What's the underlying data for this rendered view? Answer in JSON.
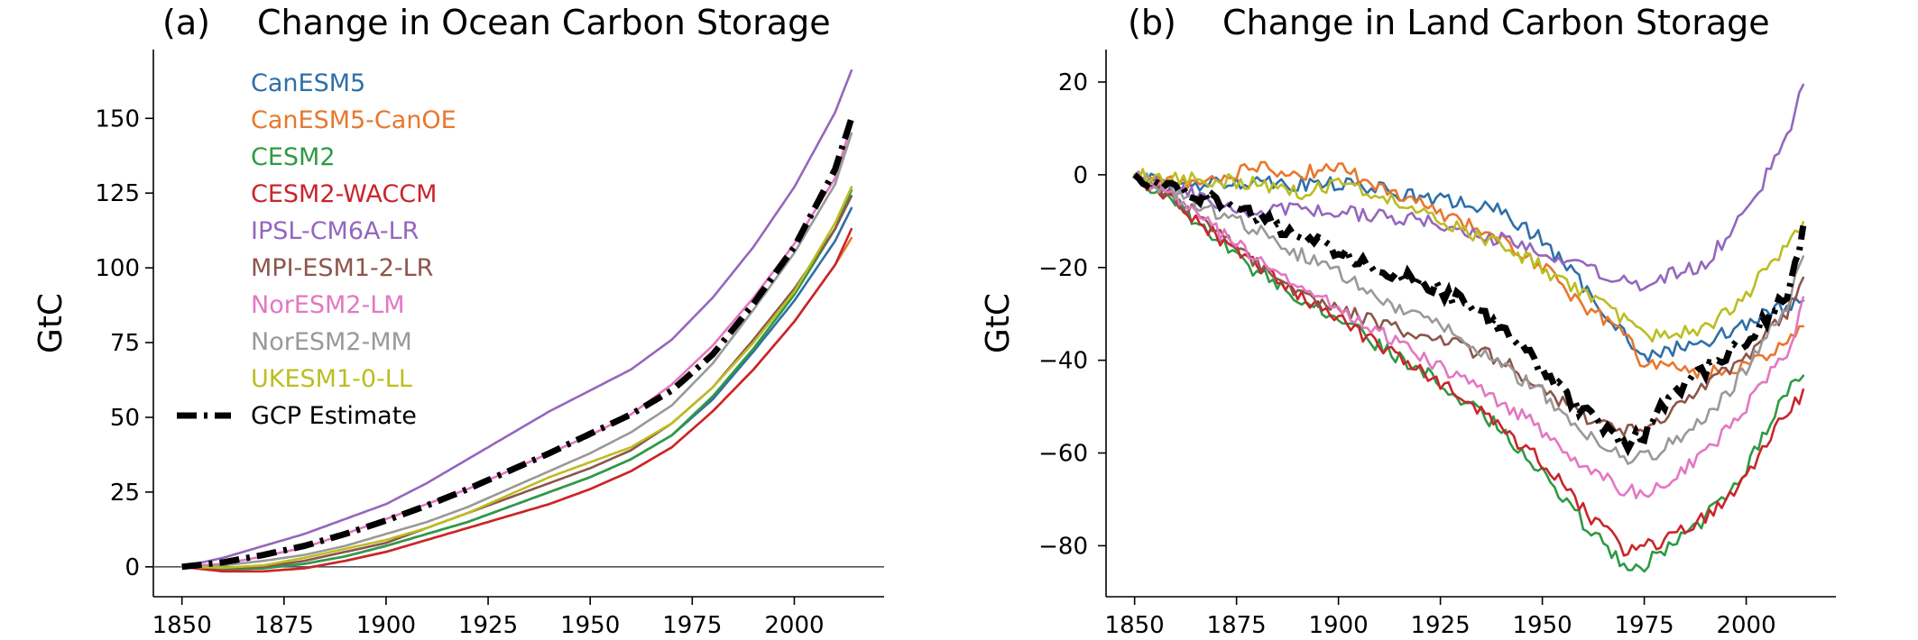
{
  "colors": {
    "CanESM5": "#2f6fa7",
    "CanESM5-CanOE": "#e8772e",
    "CESM2": "#2e9a44",
    "CESM2-WACCM": "#c9252c",
    "IPSL-CM6A-LR": "#9467bd",
    "MPI-ESM1-2-LR": "#8c564b",
    "NorESM2-LM": "#e377c2",
    "NorESM2-MM": "#999999",
    "UKESM1-0-LL": "#bcbd22",
    "GCP Estimate": "#000000"
  },
  "chart_data": [
    {
      "type": "line",
      "panel_label": "(a)",
      "title": "Change in Ocean Carbon Storage",
      "xlabel": "",
      "ylabel": "GtC",
      "xlim": [
        1843,
        2022
      ],
      "ylim": [
        -10,
        173
      ],
      "xticks": [
        1850,
        1875,
        1900,
        1925,
        1950,
        1975,
        2000
      ],
      "yticks": [
        0,
        25,
        50,
        75,
        100,
        125,
        150
      ],
      "grid": false,
      "zero_line": true,
      "legend": {
        "placement": "top-left",
        "entries": [
          "CanESM5",
          "CanESM5-CanOE",
          "CESM2",
          "CESM2-WACCM",
          "IPSL-CM6A-LR",
          "MPI-ESM1-2-LR",
          "NorESM2-LM",
          "NorESM2-MM",
          "UKESM1-0-LL",
          "GCP Estimate"
        ]
      },
      "x": [
        1850,
        1860,
        1870,
        1880,
        1890,
        1900,
        1910,
        1920,
        1930,
        1940,
        1950,
        1960,
        1970,
        1980,
        1990,
        2000,
        2010,
        2014
      ],
      "series": [
        {
          "name": "CanESM5",
          "values": [
            0,
            -0.8,
            -0.5,
            1,
            3.5,
            7,
            11,
            15,
            20,
            25,
            30,
            36,
            44,
            56,
            72,
            89,
            109,
            120
          ]
        },
        {
          "name": "CanESM5-CanOE",
          "values": [
            0,
            -1.5,
            -1.5,
            -0.5,
            2,
            5,
            9,
            13,
            17,
            21,
            26,
            32,
            40,
            52,
            66,
            82,
            101,
            110
          ]
        },
        {
          "name": "CESM2",
          "values": [
            0,
            -0.8,
            -0.5,
            1,
            3.5,
            7,
            11,
            15,
            20,
            25,
            30,
            36,
            44,
            57,
            73,
            91,
            113,
            126
          ]
        },
        {
          "name": "CESM2-WACCM",
          "values": [
            0,
            -1.5,
            -1.5,
            -0.5,
            2,
            5,
            9,
            13,
            17,
            21,
            26,
            32,
            40,
            52,
            66,
            82,
            101,
            113
          ]
        },
        {
          "name": "IPSL-CM6A-LR",
          "values": [
            0,
            3,
            7,
            11,
            16,
            21,
            28,
            36,
            44,
            52,
            59,
            66,
            76,
            90,
            107,
            127,
            152,
            166
          ]
        },
        {
          "name": "MPI-ESM1-2-LR",
          "values": [
            0,
            -0.5,
            0,
            2,
            5,
            8,
            13,
            18,
            23,
            28,
            33,
            39,
            48,
            60,
            76,
            93,
            113,
            124
          ]
        },
        {
          "name": "NorESM2-LM",
          "values": [
            0,
            1,
            3.5,
            6.5,
            11,
            16,
            21,
            26,
            32,
            38,
            44,
            51,
            61,
            74,
            90,
            108,
            130,
            148
          ]
        },
        {
          "name": "NorESM2-MM",
          "values": [
            0,
            0.5,
            2,
            4,
            7,
            11,
            15,
            20,
            26,
            32,
            38,
            45,
            54,
            68,
            86,
            105,
            128,
            145
          ]
        },
        {
          "name": "UKESM1-0-LL",
          "values": [
            0,
            -0.3,
            0.5,
            3,
            6,
            9,
            13,
            18,
            24,
            30,
            35,
            40,
            48,
            60,
            75,
            92,
            115,
            127
          ]
        },
        {
          "name": "GCP Estimate",
          "values": [
            0,
            1.5,
            4,
            7,
            11,
            15.5,
            20.5,
            26,
            32,
            38,
            44.5,
            51,
            59,
            71,
            88,
            107,
            133,
            150
          ]
        }
      ]
    },
    {
      "type": "line",
      "panel_label": "(b)",
      "title": "Change in Land Carbon Storage",
      "xlabel": "",
      "ylabel": "GtC",
      "xlim": [
        1843,
        2022
      ],
      "ylim": [
        -91,
        27
      ],
      "xticks": [
        1850,
        1875,
        1900,
        1925,
        1950,
        1975,
        2000
      ],
      "yticks": [
        -80,
        -60,
        -40,
        -20,
        0,
        20
      ],
      "grid": false,
      "zero_line": false,
      "x": [
        1850,
        1860,
        1870,
        1880,
        1890,
        1900,
        1910,
        1920,
        1930,
        1940,
        1950,
        1960,
        1970,
        1975,
        1980,
        1990,
        2000,
        2010,
        2014
      ],
      "series": [
        {
          "name": "CanESM5",
          "values": [
            0,
            -3,
            -2,
            -1,
            -2,
            -2,
            -3,
            -5,
            -6,
            -8,
            -14,
            -24,
            -34,
            -40,
            -38,
            -36,
            -32,
            -28,
            -27
          ]
        },
        {
          "name": "CanESM5-CanOE",
          "values": [
            0,
            -2,
            -1,
            2,
            0,
            2,
            -3,
            -6,
            -10,
            -14,
            -20,
            -28,
            -34,
            -41,
            -41,
            -43,
            -41,
            -36,
            -33
          ]
        },
        {
          "name": "CESM2",
          "values": [
            0,
            -6,
            -14,
            -21,
            -26,
            -31,
            -37,
            -42,
            -48,
            -55,
            -64,
            -75,
            -84,
            -84,
            -81,
            -74,
            -63,
            -47,
            -42
          ]
        },
        {
          "name": "CESM2-WACCM",
          "values": [
            0,
            -6,
            -13,
            -20,
            -26,
            -31,
            -37,
            -42,
            -48,
            -55,
            -62,
            -72,
            -81,
            -80,
            -79,
            -74,
            -65,
            -51,
            -47
          ]
        },
        {
          "name": "IPSL-CM6A-LR",
          "values": [
            0,
            -3,
            -6,
            -8,
            -7,
            -8,
            -9,
            -10,
            -12,
            -14,
            -16,
            -20,
            -23,
            -24,
            -22,
            -19,
            -8,
            8,
            21
          ]
        },
        {
          "name": "MPI-ESM1-2-LR",
          "values": [
            0,
            -5,
            -12,
            -19,
            -25,
            -29,
            -32,
            -35,
            -37,
            -40,
            -46,
            -52,
            -55,
            -54,
            -52,
            -46,
            -39,
            -30,
            -22
          ]
        },
        {
          "name": "NorESM2-LM",
          "values": [
            0,
            -5,
            -12,
            -18,
            -24,
            -29,
            -34,
            -39,
            -44,
            -49,
            -55,
            -63,
            -68,
            -69,
            -67,
            -60,
            -50,
            -38,
            -28
          ]
        },
        {
          "name": "NorESM2-MM",
          "values": [
            0,
            -4,
            -8,
            -12,
            -17,
            -21,
            -27,
            -30,
            -35,
            -41,
            -47,
            -56,
            -61,
            -61,
            -59,
            -53,
            -42,
            -28,
            -17
          ]
        },
        {
          "name": "UKESM1-0-LL",
          "values": [
            0,
            -1,
            -1,
            -2,
            -4,
            -2,
            -4,
            -8,
            -12,
            -15,
            -20,
            -26,
            -31,
            -34,
            -35,
            -33,
            -26,
            -15,
            -11
          ]
        },
        {
          "name": "GCP Estimate",
          "values": [
            0,
            -3,
            -6,
            -9,
            -13,
            -17,
            -20,
            -23,
            -27,
            -33,
            -42,
            -51,
            -58,
            -56,
            -49,
            -42,
            -36,
            -26,
            -12
          ]
        }
      ]
    }
  ]
}
